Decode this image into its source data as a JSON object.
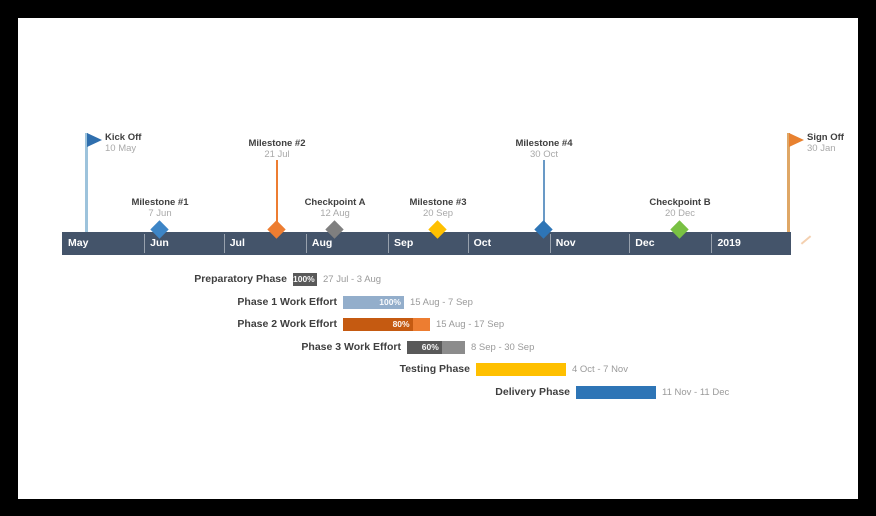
{
  "frame": {
    "background": "#000000"
  },
  "canvas": {
    "background": "#ffffff"
  },
  "chart_data": {
    "type": "gantt-timeline",
    "title": "",
    "timeline": {
      "band_color": "#44546a",
      "band_text_color": "#ffffff",
      "start": "1 May 2018",
      "end": "31 Jan 2019",
      "months": [
        {
          "label": "May",
          "anchor": "1 May"
        },
        {
          "label": "Jun",
          "anchor": "1 Jun"
        },
        {
          "label": "Jul",
          "anchor": "1 Jul"
        },
        {
          "label": "Aug",
          "anchor": "1 Aug"
        },
        {
          "label": "Sep",
          "anchor": "1 Sep"
        },
        {
          "label": "Oct",
          "anchor": "1 Oct"
        },
        {
          "label": "Nov",
          "anchor": "1 Nov"
        },
        {
          "label": "Dec",
          "anchor": "1 Dec"
        },
        {
          "label": "2019",
          "anchor": "1 Jan"
        }
      ]
    },
    "milestones": [
      {
        "name": "Kick Off",
        "date": "10 May",
        "shape": "flag",
        "color": "#2f6fae",
        "stem_color": "#9dc3dc",
        "elevated": true
      },
      {
        "name": "Milestone #1",
        "date": "7 Jun",
        "shape": "diamond",
        "color": "#3d85c6",
        "stem_color": "",
        "elevated": false
      },
      {
        "name": "Milestone #2",
        "date": "21 Jul",
        "shape": "diamond",
        "color": "#ed7d31",
        "stem_color": "#ed7d31",
        "elevated": true
      },
      {
        "name": "Checkpoint A",
        "date": "12 Aug",
        "shape": "diamond",
        "color": "#7f7f7f",
        "stem_color": "",
        "elevated": false
      },
      {
        "name": "Milestone #3",
        "date": "20 Sep",
        "shape": "diamond",
        "color": "#ffc000",
        "stem_color": "",
        "elevated": false
      },
      {
        "name": "Milestone #4",
        "date": "30 Oct",
        "shape": "diamond",
        "color": "#2e75b6",
        "stem_color": "#6999c6",
        "elevated": true
      },
      {
        "name": "Checkpoint B",
        "date": "20 Dec",
        "shape": "diamond",
        "color": "#79c143",
        "stem_color": "",
        "elevated": false
      },
      {
        "name": "Sign Off",
        "date": "30 Jan",
        "shape": "flag",
        "color": "#e8812f",
        "stem_color": "#dfa766",
        "elevated": true
      }
    ],
    "tasks": [
      {
        "name": "Preparatory Phase",
        "start": "27 Jul",
        "end": "3 Aug",
        "dates_label": "27 Jul - 3 Aug",
        "percent": 100,
        "percent_label": "100%",
        "fill_color": "#595959",
        "remainder_color": "#595959"
      },
      {
        "name": "Phase 1 Work Effort",
        "start": "15 Aug",
        "end": "7 Sep",
        "dates_label": "15 Aug - 7 Sep",
        "percent": 100,
        "percent_label": "100%",
        "fill_color": "#93aecb",
        "remainder_color": "#93aecb"
      },
      {
        "name": "Phase 2 Work Effort",
        "start": "15 Aug",
        "end": "17 Sep",
        "dates_label": "15 Aug - 17 Sep",
        "percent": 80,
        "percent_label": "80%",
        "fill_color": "#c55a11",
        "remainder_color": "#ed7d31"
      },
      {
        "name": "Phase 3 Work Effort",
        "start": "8 Sep",
        "end": "30 Sep",
        "dates_label": "8 Sep - 30 Sep",
        "percent": 60,
        "percent_label": "60%",
        "fill_color": "#595959",
        "remainder_color": "#8c8c8c"
      },
      {
        "name": "Testing Phase",
        "start": "4 Oct",
        "end": "7 Nov",
        "dates_label": "4 Oct - 7 Nov",
        "percent": 100,
        "percent_label": "",
        "fill_color": "#ffc000",
        "remainder_color": "#ffc000"
      },
      {
        "name": "Delivery Phase",
        "start": "11 Nov",
        "end": "11 Dec",
        "dates_label": "11 Nov - 11 Dec",
        "percent": 100,
        "percent_label": "",
        "fill_color": "#2e75b6",
        "remainder_color": "#2e75b6"
      }
    ]
  }
}
